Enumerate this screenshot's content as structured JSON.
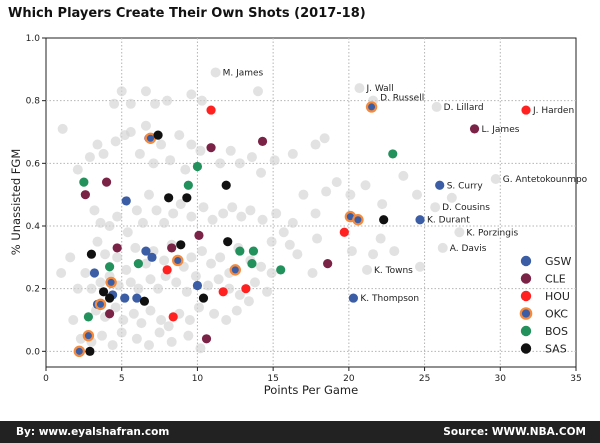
{
  "chart_data": {
    "type": "scatter",
    "title": "Which Players Create Their Own Shots (2017-18)",
    "xlabel": "Points Per Game",
    "ylabel": "% Unassisted FGM",
    "xlim": [
      0,
      35
    ],
    "ylim": [
      -0.05,
      1.0
    ],
    "x_ticks": [
      "0",
      "5",
      "10",
      "15",
      "20",
      "25",
      "30",
      "35"
    ],
    "y_ticks": [
      "0.0",
      "0.2",
      "0.4",
      "0.6",
      "0.8",
      "1.0"
    ],
    "grid": true,
    "legend_position": "right",
    "colors": {
      "GSW": "#3a5da5",
      "CLE": "#7b2346",
      "HOU": "#ff2020",
      "OKC_fill": "#3a5da5",
      "OKC_edge": "#f58a3c",
      "BOS": "#22915c",
      "SAS": "#111111",
      "other": "#d3d3d3"
    },
    "series": [
      {
        "name": "GSW",
        "points": [
          [
            5.3,
            0.48
          ],
          [
            26.0,
            0.53
          ],
          [
            24.7,
            0.42
          ],
          [
            20.3,
            0.17
          ],
          [
            3.2,
            0.25
          ],
          [
            4.4,
            0.18
          ],
          [
            5.2,
            0.17
          ],
          [
            6.6,
            0.32
          ],
          [
            7.0,
            0.3
          ],
          [
            10.0,
            0.21
          ],
          [
            3.4,
            0.15
          ],
          [
            6.0,
            0.17
          ]
        ]
      },
      {
        "name": "CLE",
        "points": [
          [
            28.3,
            0.71
          ],
          [
            14.3,
            0.67
          ],
          [
            10.9,
            0.65
          ],
          [
            4.0,
            0.54
          ],
          [
            6.8,
            0.68
          ],
          [
            2.6,
            0.5
          ],
          [
            4.7,
            0.33
          ],
          [
            10.1,
            0.37
          ],
          [
            18.6,
            0.28
          ],
          [
            8.3,
            0.33
          ],
          [
            4.2,
            0.12
          ],
          [
            10.6,
            0.04
          ]
        ]
      },
      {
        "name": "HOU",
        "points": [
          [
            10.9,
            0.77
          ],
          [
            31.7,
            0.77
          ],
          [
            19.7,
            0.38
          ],
          [
            8.0,
            0.26
          ],
          [
            13.2,
            0.2
          ],
          [
            11.7,
            0.19
          ],
          [
            8.4,
            0.11
          ]
        ]
      },
      {
        "name": "OKC",
        "points": [
          [
            21.5,
            0.78
          ],
          [
            20.1,
            0.43
          ],
          [
            20.6,
            0.42
          ],
          [
            6.9,
            0.68
          ],
          [
            8.7,
            0.29
          ],
          [
            12.5,
            0.26
          ],
          [
            4.3,
            0.22
          ],
          [
            2.8,
            0.05
          ],
          [
            2.2,
            0.0
          ],
          [
            3.6,
            0.15
          ]
        ]
      },
      {
        "name": "BOS",
        "points": [
          [
            22.9,
            0.63
          ],
          [
            9.4,
            0.53
          ],
          [
            10.0,
            0.59
          ],
          [
            2.5,
            0.54
          ],
          [
            6.1,
            0.28
          ],
          [
            4.2,
            0.27
          ],
          [
            12.8,
            0.32
          ],
          [
            13.7,
            0.32
          ],
          [
            13.6,
            0.28
          ],
          [
            15.5,
            0.26
          ],
          [
            2.8,
            0.11
          ]
        ]
      },
      {
        "name": "SAS",
        "points": [
          [
            7.4,
            0.69
          ],
          [
            22.3,
            0.42
          ],
          [
            11.9,
            0.53
          ],
          [
            8.1,
            0.49
          ],
          [
            9.3,
            0.49
          ],
          [
            3.0,
            0.31
          ],
          [
            8.9,
            0.34
          ],
          [
            12.0,
            0.35
          ],
          [
            3.8,
            0.19
          ],
          [
            4.2,
            0.17
          ],
          [
            6.5,
            0.16
          ],
          [
            10.4,
            0.17
          ],
          [
            2.9,
            0.0
          ]
        ]
      }
    ],
    "other_points": [
      [
        1.1,
        0.71
      ],
      [
        2.1,
        0.58
      ],
      [
        2.9,
        0.62
      ],
      [
        3.4,
        0.66
      ],
      [
        3.8,
        0.63
      ],
      [
        4.6,
        0.67
      ],
      [
        5.2,
        0.69
      ],
      [
        5.6,
        0.7
      ],
      [
        6.2,
        0.63
      ],
      [
        6.6,
        0.72
      ],
      [
        7.1,
        0.6
      ],
      [
        7.6,
        0.66
      ],
      [
        8.2,
        0.61
      ],
      [
        8.8,
        0.69
      ],
      [
        9.2,
        0.58
      ],
      [
        9.6,
        0.66
      ],
      [
        10.2,
        0.64
      ],
      [
        11.5,
        0.6
      ],
      [
        12.2,
        0.64
      ],
      [
        12.8,
        0.6
      ],
      [
        13.6,
        0.62
      ],
      [
        14.2,
        0.57
      ],
      [
        15.1,
        0.61
      ],
      [
        16.3,
        0.63
      ],
      [
        17.8,
        0.66
      ],
      [
        18.4,
        0.68
      ],
      [
        4.5,
        0.79
      ],
      [
        5.0,
        0.83
      ],
      [
        5.6,
        0.79
      ],
      [
        6.6,
        0.83
      ],
      [
        7.2,
        0.79
      ],
      [
        8.0,
        0.8
      ],
      [
        9.6,
        0.82
      ],
      [
        10.3,
        0.8
      ],
      [
        11.2,
        0.89
      ],
      [
        14.0,
        0.83
      ],
      [
        20.7,
        0.84
      ],
      [
        21.6,
        0.8
      ],
      [
        25.8,
        0.78
      ],
      [
        3.2,
        0.45
      ],
      [
        3.6,
        0.41
      ],
      [
        4.2,
        0.4
      ],
      [
        4.7,
        0.43
      ],
      [
        5.4,
        0.38
      ],
      [
        6.0,
        0.45
      ],
      [
        6.4,
        0.41
      ],
      [
        6.8,
        0.5
      ],
      [
        7.3,
        0.45
      ],
      [
        7.8,
        0.41
      ],
      [
        8.4,
        0.44
      ],
      [
        8.9,
        0.47
      ],
      [
        9.6,
        0.43
      ],
      [
        10.4,
        0.46
      ],
      [
        11.0,
        0.42
      ],
      [
        11.7,
        0.44
      ],
      [
        12.3,
        0.46
      ],
      [
        12.9,
        0.43
      ],
      [
        13.5,
        0.45
      ],
      [
        14.3,
        0.42
      ],
      [
        15.2,
        0.44
      ],
      [
        15.7,
        0.38
      ],
      [
        16.3,
        0.41
      ],
      [
        17.0,
        0.5
      ],
      [
        17.8,
        0.44
      ],
      [
        18.5,
        0.51
      ],
      [
        19.2,
        0.54
      ],
      [
        20.1,
        0.5
      ],
      [
        21.1,
        0.53
      ],
      [
        22.2,
        0.47
      ],
      [
        23.6,
        0.56
      ],
      [
        24.5,
        0.5
      ],
      [
        25.7,
        0.46
      ],
      [
        26.8,
        0.49
      ],
      [
        29.7,
        0.55
      ],
      [
        26.2,
        0.33
      ],
      [
        27.3,
        0.38
      ],
      [
        20.2,
        0.32
      ],
      [
        21.6,
        0.31
      ],
      [
        17.9,
        0.36
      ],
      [
        16.6,
        0.31
      ],
      [
        14.9,
        0.35
      ],
      [
        3.4,
        0.35
      ],
      [
        3.9,
        0.31
      ],
      [
        4.7,
        0.3
      ],
      [
        5.3,
        0.26
      ],
      [
        5.9,
        0.33
      ],
      [
        6.6,
        0.28
      ],
      [
        7.1,
        0.32
      ],
      [
        7.8,
        0.29
      ],
      [
        8.3,
        0.34
      ],
      [
        9.1,
        0.27
      ],
      [
        9.6,
        0.3
      ],
      [
        10.3,
        0.32
      ],
      [
        10.9,
        0.28
      ],
      [
        11.5,
        0.3
      ],
      [
        12.1,
        0.25
      ],
      [
        12.7,
        0.33
      ],
      [
        13.5,
        0.29
      ],
      [
        14.2,
        0.27
      ],
      [
        14.9,
        0.25
      ],
      [
        16.1,
        0.34
      ],
      [
        17.6,
        0.25
      ],
      [
        21.2,
        0.26
      ],
      [
        23.0,
        0.32
      ],
      [
        2.1,
        0.2
      ],
      [
        2.6,
        0.25
      ],
      [
        3.0,
        0.2
      ],
      [
        3.6,
        0.22
      ],
      [
        4.2,
        0.24
      ],
      [
        4.8,
        0.21
      ],
      [
        5.6,
        0.22
      ],
      [
        6.1,
        0.2
      ],
      [
        6.9,
        0.23
      ],
      [
        7.4,
        0.2
      ],
      [
        7.9,
        0.24
      ],
      [
        8.6,
        0.22
      ],
      [
        9.3,
        0.19
      ],
      [
        9.9,
        0.24
      ],
      [
        10.7,
        0.21
      ],
      [
        11.4,
        0.23
      ],
      [
        12.1,
        0.2
      ],
      [
        12.8,
        0.18
      ],
      [
        13.8,
        0.22
      ],
      [
        14.6,
        0.19
      ],
      [
        3.3,
        0.13
      ],
      [
        3.9,
        0.11
      ],
      [
        4.6,
        0.14
      ],
      [
        5.1,
        0.1
      ],
      [
        5.8,
        0.12
      ],
      [
        6.3,
        0.09
      ],
      [
        6.9,
        0.13
      ],
      [
        7.6,
        0.1
      ],
      [
        8.1,
        0.08
      ],
      [
        8.8,
        0.12
      ],
      [
        9.5,
        0.1
      ],
      [
        10.1,
        0.14
      ],
      [
        11.1,
        0.12
      ],
      [
        11.9,
        0.1
      ],
      [
        12.6,
        0.13
      ],
      [
        13.4,
        0.16
      ],
      [
        2.3,
        0.04
      ],
      [
        3.0,
        0.03
      ],
      [
        3.7,
        0.05
      ],
      [
        4.4,
        0.02
      ],
      [
        5.0,
        0.06
      ],
      [
        6.0,
        0.04
      ],
      [
        6.8,
        0.02
      ],
      [
        7.5,
        0.06
      ],
      [
        8.3,
        0.03
      ],
      [
        9.4,
        0.05
      ],
      [
        10.2,
        0.01
      ],
      [
        1.0,
        0.25
      ],
      [
        1.6,
        0.3
      ],
      [
        1.8,
        0.1
      ],
      [
        24.7,
        0.27
      ],
      [
        22.1,
        0.36
      ]
    ],
    "annotations": [
      {
        "text": "M. James",
        "x": 11.2,
        "y": 0.89
      },
      {
        "text": "J. Wall",
        "x": 20.7,
        "y": 0.84
      },
      {
        "text": "D. Russell",
        "x": 21.6,
        "y": 0.81
      },
      {
        "text": "D. Lillard",
        "x": 25.8,
        "y": 0.78
      },
      {
        "text": "J. Harden",
        "x": 31.7,
        "y": 0.77
      },
      {
        "text": "L. James",
        "x": 28.3,
        "y": 0.71
      },
      {
        "text": "G. Antetokounmpo",
        "x": 29.7,
        "y": 0.55
      },
      {
        "text": "S. Curry",
        "x": 26.0,
        "y": 0.53
      },
      {
        "text": "D. Cousins",
        "x": 25.7,
        "y": 0.46
      },
      {
        "text": "K. Durant",
        "x": 24.7,
        "y": 0.42
      },
      {
        "text": "K. Porzingis",
        "x": 27.3,
        "y": 0.38
      },
      {
        "text": "A. Davis",
        "x": 26.2,
        "y": 0.33
      },
      {
        "text": "K. Towns",
        "x": 21.2,
        "y": 0.26
      },
      {
        "text": "K. Thompson",
        "x": 20.3,
        "y": 0.17
      }
    ]
  },
  "footer": {
    "left": "By: www.eyalshafran.com",
    "right": "Source: WWW.NBA.COM"
  }
}
